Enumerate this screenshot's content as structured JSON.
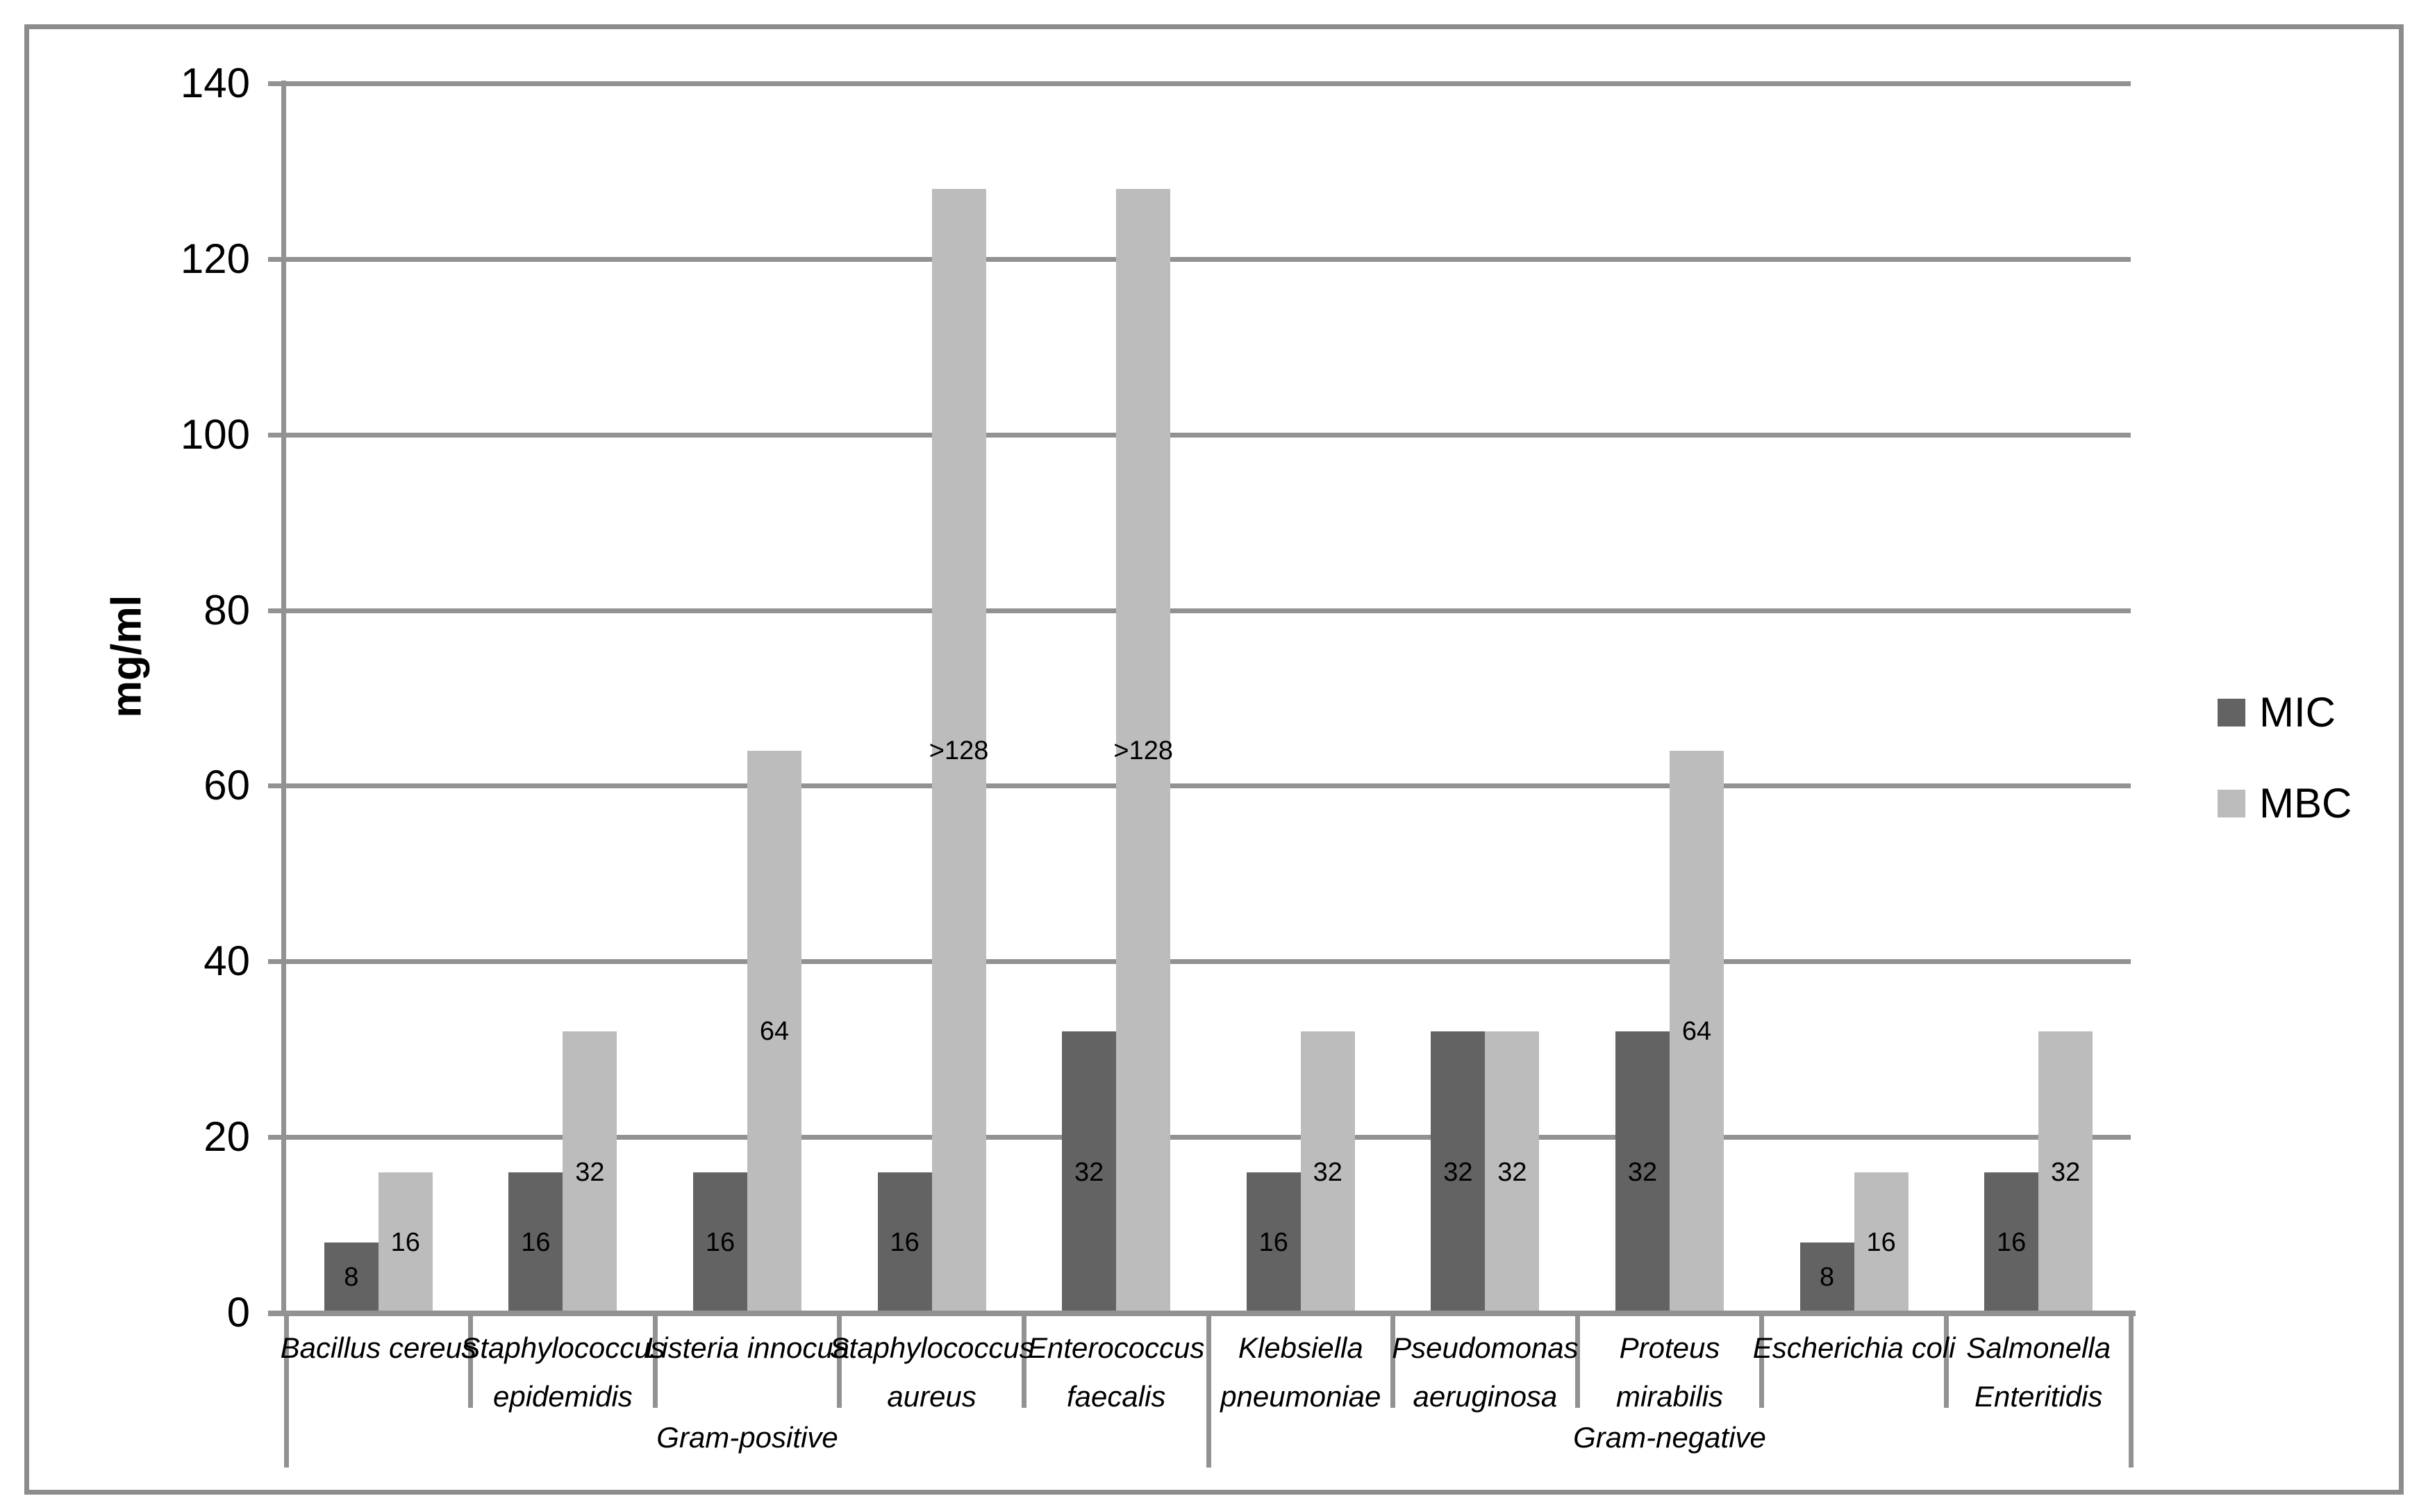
{
  "chart_data": {
    "type": "bar",
    "title": "",
    "ylabel": "mg/ml",
    "ylim": [
      0,
      140
    ],
    "ytick_step": 20,
    "yticks": [
      0,
      20,
      40,
      60,
      80,
      100,
      120,
      140
    ],
    "grid": true,
    "legend_position": "right",
    "categories": [
      "Bacillus cereus",
      "Staphylococcus epidemidis",
      "Listeria innocua",
      "Staphylococcus aureus",
      "Enterococcus faecalis",
      "Klebsiella pneumoniae",
      "Pseudomonas aeruginosa",
      "Proteus mirabilis",
      "Escherichia coli",
      "Salmonella Enteritidis"
    ],
    "category_lines": [
      [
        "Bacillus cereus"
      ],
      [
        "Staphylococcus",
        "epidemidis"
      ],
      [
        "Listeria innocua"
      ],
      [
        "Staphylococcus",
        "aureus"
      ],
      [
        "Enterococcus",
        "faecalis"
      ],
      [
        "Klebsiella",
        "pneumoniae"
      ],
      [
        "Pseudomonas",
        "aeruginosa"
      ],
      [
        "Proteus",
        "mirabilis"
      ],
      [
        "Escherichia coli"
      ],
      [
        "Salmonella",
        "Enteritidis"
      ]
    ],
    "groups": [
      {
        "label": "Gram-positive",
        "start": 0,
        "end": 5
      },
      {
        "label": "Gram-negative",
        "start": 5,
        "end": 10
      }
    ],
    "series": [
      {
        "name": "MIC",
        "color": "#636363",
        "values": [
          8,
          16,
          16,
          16,
          32,
          16,
          32,
          32,
          8,
          16
        ],
        "labels": [
          "8",
          "16",
          "16",
          "16",
          "32",
          "16",
          "32",
          "32",
          "8",
          "16"
        ]
      },
      {
        "name": "MBC",
        "color": "#bcbcbc",
        "values": [
          16,
          32,
          64,
          128,
          128,
          32,
          32,
          64,
          16,
          32
        ],
        "labels": [
          "16",
          "32",
          "64",
          ">128",
          ">128",
          "32",
          "32",
          "64",
          "16",
          "32"
        ]
      }
    ],
    "colors": {
      "gridline": "#929292",
      "axis": "#929292",
      "frame": "#8c8c8c",
      "label_text": "#000000",
      "background": "#ffffff"
    }
  }
}
